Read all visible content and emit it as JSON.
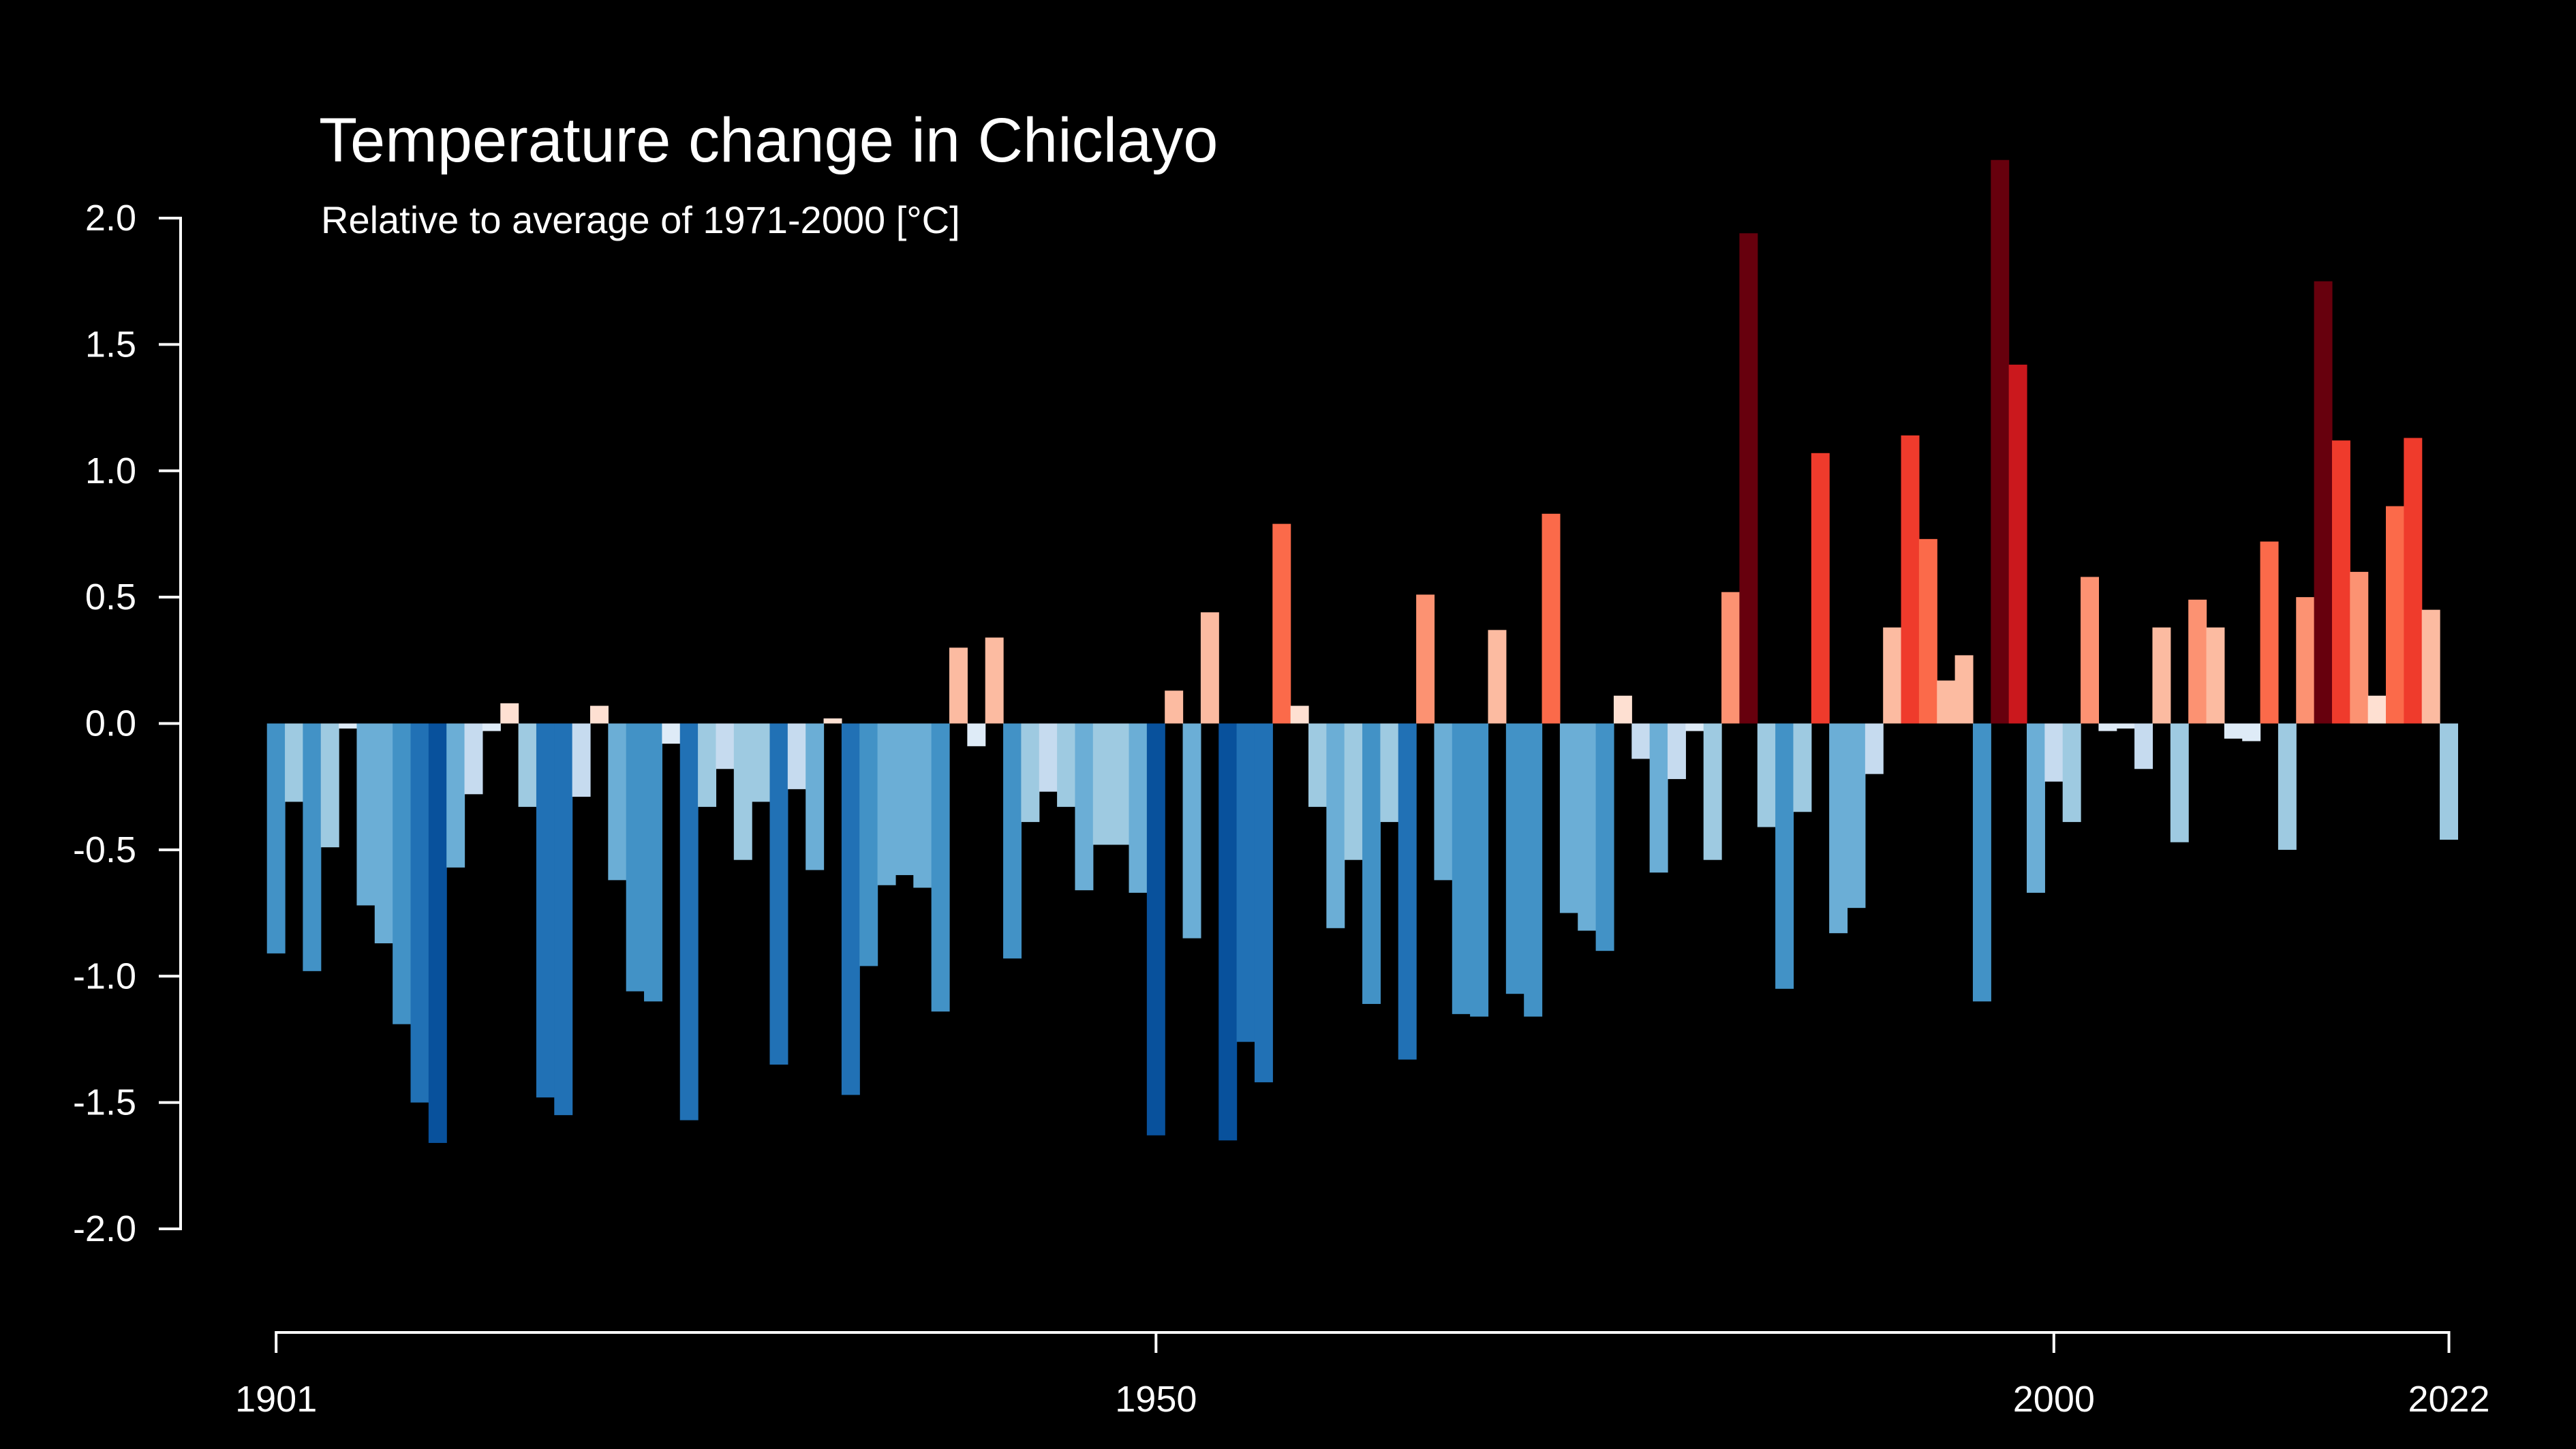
{
  "colors": {
    "background": "#000000",
    "axis": "#ffffff",
    "text": "#ffffff",
    "subtitle": "#d9d9d9"
  },
  "chart_data": {
    "type": "bar",
    "title": "Temperature change in Chiclayo",
    "subtitle": "Relative to average of 1971-2000  [°C]",
    "xlabel": "",
    "ylabel": "",
    "xlim": [
      1901,
      2022
    ],
    "ylim": [
      -2.0,
      2.0
    ],
    "x_ticks": [
      1901,
      1950,
      2000,
      2022
    ],
    "x_tick_labels": [
      "1901",
      "1950",
      "2000",
      "2022"
    ],
    "y_ticks": [
      2.0,
      1.5,
      1.0,
      0.5,
      0.0,
      -0.5,
      -1.0,
      -1.5,
      -2.0
    ],
    "y_tick_labels": [
      "2.0",
      "1.5",
      "1.0",
      "0.5",
      "0.0",
      "-0.5",
      "-1.0",
      "-1.5",
      "-2.0"
    ],
    "grid": false,
    "legend": "none",
    "color_scale": "blue (cooler) to red (warmer)",
    "x": [
      1901,
      1902,
      1903,
      1904,
      1905,
      1906,
      1907,
      1908,
      1909,
      1910,
      1911,
      1912,
      1913,
      1914,
      1915,
      1916,
      1917,
      1918,
      1919,
      1920,
      1921,
      1922,
      1923,
      1924,
      1925,
      1926,
      1927,
      1928,
      1929,
      1930,
      1931,
      1932,
      1933,
      1934,
      1935,
      1936,
      1937,
      1938,
      1939,
      1940,
      1941,
      1942,
      1943,
      1944,
      1945,
      1946,
      1947,
      1948,
      1949,
      1950,
      1951,
      1952,
      1953,
      1954,
      1955,
      1956,
      1957,
      1958,
      1959,
      1960,
      1961,
      1962,
      1963,
      1964,
      1965,
      1966,
      1967,
      1968,
      1969,
      1970,
      1971,
      1972,
      1973,
      1974,
      1975,
      1976,
      1977,
      1978,
      1979,
      1980,
      1981,
      1982,
      1983,
      1984,
      1985,
      1986,
      1987,
      1988,
      1989,
      1990,
      1991,
      1992,
      1993,
      1994,
      1995,
      1996,
      1997,
      1998,
      1999,
      2000,
      2001,
      2002,
      2003,
      2004,
      2005,
      2006,
      2007,
      2008,
      2009,
      2010,
      2011,
      2012,
      2013,
      2014,
      2015,
      2016,
      2017,
      2018,
      2019,
      2020,
      2021,
      2022
    ],
    "values": [
      -0.91,
      -0.31,
      -0.98,
      -0.49,
      -0.02,
      -0.72,
      -0.87,
      -1.19,
      -1.5,
      -1.66,
      -0.57,
      -0.28,
      -0.03,
      0.08,
      -0.33,
      -1.48,
      -1.55,
      -0.29,
      0.07,
      -0.62,
      -1.06,
      -1.1,
      -0.08,
      -1.57,
      -0.33,
      -0.18,
      -0.54,
      -0.31,
      -1.35,
      -0.26,
      -0.58,
      0.02,
      -1.47,
      -0.96,
      -0.64,
      -0.6,
      -0.65,
      -1.14,
      0.3,
      -0.09,
      0.34,
      -0.93,
      -0.39,
      -0.27,
      -0.33,
      -0.66,
      -0.48,
      -0.48,
      -0.67,
      -1.63,
      0.13,
      -0.85,
      0.44,
      -1.65,
      -1.26,
      -1.42,
      0.79,
      0.07,
      -0.33,
      -0.81,
      -0.54,
      -1.11,
      -0.39,
      -1.33,
      0.51,
      -0.62,
      -1.15,
      -1.16,
      0.37,
      -1.07,
      -1.16,
      0.83,
      -0.75,
      -0.82,
      -0.9,
      0.11,
      -0.14,
      -0.59,
      -0.22,
      -0.03,
      -0.54,
      0.52,
      1.94,
      -0.41,
      -1.05,
      -0.35,
      1.07,
      -0.83,
      -0.73,
      -0.2,
      0.38,
      1.14,
      0.73,
      0.17,
      0.27,
      -1.1,
      2.23,
      1.42,
      -0.67,
      -0.23,
      -0.39,
      0.58,
      -0.03,
      -0.02,
      -0.18,
      0.38,
      -0.47,
      0.49,
      0.38,
      -0.06,
      -0.07,
      0.72,
      -0.5,
      0.5,
      1.75,
      1.12,
      0.6,
      0.11,
      0.86,
      1.13,
      0.45,
      -0.46
    ]
  }
}
